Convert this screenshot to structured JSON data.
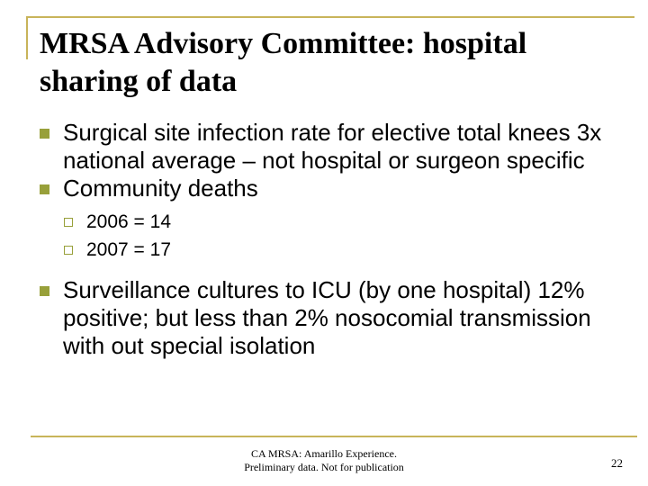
{
  "slide": {
    "title": "MRSA Advisory Committee: hospital sharing of data",
    "bullets": [
      {
        "text": "Surgical site infection rate for elective total knees 3x national average – not hospital or surgeon specific"
      },
      {
        "text": "Community deaths"
      },
      {
        "text": "2006 = 14"
      },
      {
        "text": "2007 = 17"
      },
      {
        "text": "Surveillance cultures to ICU (by one hospital) 12% positive; but less than 2% nosocomial transmission with out special isolation"
      }
    ],
    "footer": {
      "line1": "CA MRSA: Amarillo Experience.",
      "line2": "Preliminary data. Not for publication"
    },
    "page_number": "22"
  },
  "colors": {
    "accent_line": "#c8b45a",
    "bullet": "#98a03a"
  }
}
